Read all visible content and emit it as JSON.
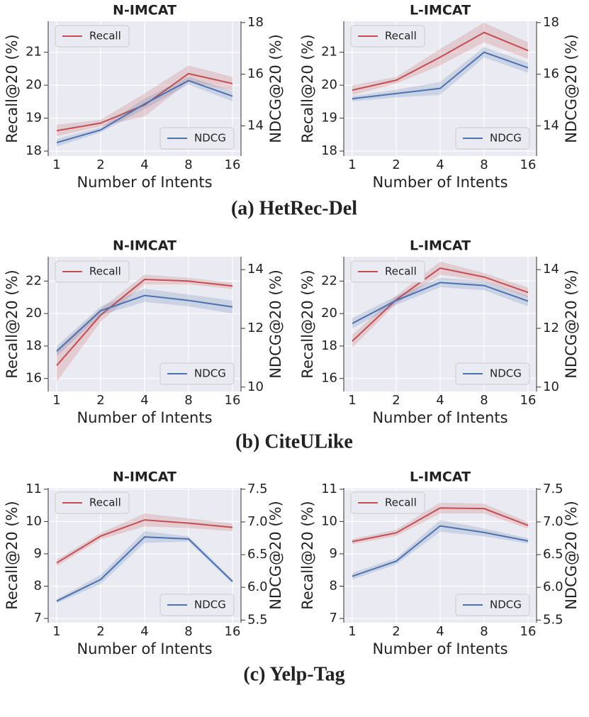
{
  "captions": [
    "(a) HetRec-Del",
    "(b) CiteULike",
    "(c) Yelp-Tag"
  ],
  "chart_data": [
    {
      "type": "line",
      "title": "N-IMCAT",
      "xlabel": "Number of Intents",
      "ylabel": "Recall@20 (%)",
      "y2label": "NDCG@20 (%)",
      "categories": [
        "1",
        "2",
        "4",
        "8",
        "16"
      ],
      "ylim": [
        17.85,
        21.94
      ],
      "yticks": [
        18,
        19,
        20,
        21
      ],
      "y2lim": [
        12.83,
        18.05
      ],
      "y2ticks": [
        14,
        16,
        18
      ],
      "grid": true,
      "series": [
        {
          "name": "Recall",
          "color": "#c44e52",
          "axis": "y",
          "legend": "upper left",
          "values": [
            18.62,
            18.85,
            19.4,
            20.35,
            20.05
          ],
          "lower": [
            18.45,
            18.75,
            19.05,
            20.1,
            19.85
          ],
          "upper": [
            18.8,
            18.95,
            19.75,
            20.6,
            20.25
          ]
        },
        {
          "name": "NDCG",
          "color": "#4c72b0",
          "axis": "y2",
          "legend": "lower right",
          "values": [
            13.35,
            13.84,
            14.85,
            15.75,
            15.15
          ],
          "lower": [
            13.2,
            13.74,
            14.65,
            15.6,
            14.95
          ],
          "upper": [
            13.5,
            13.94,
            15.05,
            15.9,
            15.35
          ]
        }
      ]
    },
    {
      "type": "line",
      "title": "L-IMCAT",
      "xlabel": "Number of Intents",
      "ylabel": "Recall@20 (%)",
      "y2label": "NDCG@20 (%)",
      "categories": [
        "1",
        "2",
        "4",
        "8",
        "16"
      ],
      "ylim": [
        17.85,
        21.94
      ],
      "yticks": [
        18,
        19,
        20,
        21
      ],
      "y2lim": [
        12.83,
        18.05
      ],
      "y2ticks": [
        14,
        16,
        18
      ],
      "grid": true,
      "series": [
        {
          "name": "Recall",
          "color": "#c44e52",
          "axis": "y",
          "legend": "upper left",
          "values": [
            19.85,
            20.15,
            20.85,
            21.6,
            21.05
          ],
          "lower": [
            19.7,
            20.05,
            20.6,
            21.3,
            20.8
          ],
          "upper": [
            20.0,
            20.25,
            21.1,
            21.9,
            21.3
          ]
        },
        {
          "name": "NDCG",
          "color": "#4c72b0",
          "axis": "y2",
          "legend": "lower right",
          "values": [
            15.05,
            15.25,
            15.45,
            16.85,
            16.25
          ],
          "lower": [
            14.95,
            15.1,
            15.2,
            16.65,
            16.05
          ],
          "upper": [
            15.15,
            15.4,
            15.7,
            17.05,
            16.45
          ]
        }
      ]
    },
    {
      "type": "line",
      "title": "N-IMCAT",
      "xlabel": "Number of Intents",
      "ylabel": "Recall@20 (%)",
      "y2label": "NDCG@20 (%)",
      "categories": [
        "1",
        "2",
        "4",
        "8",
        "16"
      ],
      "ylim": [
        15.2,
        23.5
      ],
      "yticks": [
        16,
        18,
        20,
        22
      ],
      "y2lim": [
        9.85,
        14.44
      ],
      "y2ticks": [
        10,
        12,
        14
      ],
      "grid": true,
      "series": [
        {
          "name": "Recall",
          "color": "#c44e52",
          "axis": "y",
          "legend": "upper left",
          "values": [
            16.8,
            19.9,
            22.1,
            22.0,
            21.7
          ],
          "lower": [
            15.8,
            19.5,
            21.8,
            21.8,
            21.5
          ],
          "upper": [
            17.8,
            20.3,
            22.4,
            22.2,
            21.9
          ]
        },
        {
          "name": "NDCG",
          "color": "#4c72b0",
          "axis": "y2",
          "legend": "lower right",
          "values": [
            11.22,
            12.6,
            13.12,
            12.95,
            12.73
          ],
          "lower": [
            11.05,
            12.45,
            12.9,
            12.75,
            12.5
          ],
          "upper": [
            11.4,
            12.75,
            13.35,
            13.15,
            12.95
          ]
        }
      ]
    },
    {
      "type": "line",
      "title": "L-IMCAT",
      "xlabel": "Number of Intents",
      "ylabel": "Recall@20 (%)",
      "y2label": "NDCG@20 (%)",
      "categories": [
        "1",
        "2",
        "4",
        "8",
        "16"
      ],
      "ylim": [
        15.2,
        23.5
      ],
      "yticks": [
        16,
        18,
        20,
        22
      ],
      "y2lim": [
        9.85,
        14.44
      ],
      "y2ticks": [
        10,
        12,
        14
      ],
      "grid": true,
      "series": [
        {
          "name": "Recall",
          "color": "#c44e52",
          "axis": "y",
          "legend": "upper left",
          "values": [
            18.3,
            20.85,
            22.8,
            22.25,
            21.3
          ],
          "lower": [
            17.9,
            20.6,
            22.4,
            22.0,
            21.0
          ],
          "upper": [
            18.7,
            21.1,
            23.2,
            22.5,
            21.6
          ]
        },
        {
          "name": "NDCG",
          "color": "#4c72b0",
          "axis": "y2",
          "legend": "lower right",
          "values": [
            12.17,
            12.95,
            13.56,
            13.46,
            12.93
          ],
          "lower": [
            12.0,
            12.8,
            13.4,
            13.3,
            12.75
          ],
          "upper": [
            12.35,
            13.1,
            13.72,
            13.62,
            13.1
          ]
        }
      ]
    },
    {
      "type": "line",
      "title": "N-IMCAT",
      "xlabel": "Number of Intents",
      "ylabel": "Recall@20 (%)",
      "y2label": "NDCG@20 (%)",
      "categories": [
        "1",
        "2",
        "4",
        "8",
        "16"
      ],
      "ylim": [
        6.87,
        11.04
      ],
      "yticks": [
        7,
        8,
        9,
        10,
        11
      ],
      "y2lim": [
        5.46,
        7.52
      ],
      "y2ticks": [
        7.5,
        {
          "value": 7,
          "label": "7.0"
        },
        6.5,
        {
          "value": 6,
          "label": "6.0"
        },
        5.5
      ],
      "grid": true,
      "series": [
        {
          "name": "Recall",
          "color": "#c44e52",
          "axis": "y",
          "legend": "upper left",
          "values": [
            8.72,
            9.55,
            10.05,
            9.95,
            9.82
          ],
          "lower": [
            8.62,
            9.45,
            9.85,
            9.8,
            9.7
          ],
          "upper": [
            8.82,
            9.65,
            10.25,
            10.1,
            9.94
          ]
        },
        {
          "name": "NDCG",
          "color": "#4c72b0",
          "axis": "y2",
          "legend": "lower right",
          "values": [
            5.79,
            6.12,
            6.77,
            6.74,
            6.09
          ],
          "lower": [
            5.76,
            6.05,
            6.68,
            6.7,
            6.06
          ],
          "upper": [
            5.82,
            6.19,
            6.86,
            6.78,
            6.12
          ]
        }
      ]
    },
    {
      "type": "line",
      "title": "L-IMCAT",
      "xlabel": "Number of Intents",
      "ylabel": "Recall@20 (%)",
      "y2label": "NDCG@20 (%)",
      "categories": [
        "1",
        "2",
        "4",
        "8",
        "16"
      ],
      "ylim": [
        6.87,
        11.04
      ],
      "yticks": [
        7,
        8,
        9,
        10,
        11
      ],
      "y2lim": [
        5.46,
        7.52
      ],
      "y2ticks": [
        7.5,
        {
          "value": 7,
          "label": "7.0"
        },
        6.5,
        {
          "value": 6,
          "label": "6.0"
        },
        5.5
      ],
      "grid": true,
      "series": [
        {
          "name": "Recall",
          "color": "#c44e52",
          "axis": "y",
          "legend": "upper left",
          "values": [
            9.38,
            9.65,
            10.42,
            10.4,
            9.88
          ],
          "lower": [
            9.3,
            9.55,
            10.25,
            10.25,
            9.78
          ],
          "upper": [
            9.46,
            9.75,
            10.59,
            10.55,
            9.98
          ]
        },
        {
          "name": "NDCG",
          "color": "#4c72b0",
          "axis": "y2",
          "legend": "lower right",
          "values": [
            6.17,
            6.4,
            6.94,
            6.84,
            6.71
          ],
          "lower": [
            6.12,
            6.35,
            6.85,
            6.78,
            6.67
          ],
          "upper": [
            6.22,
            6.45,
            7.03,
            6.9,
            6.75
          ]
        }
      ]
    }
  ]
}
